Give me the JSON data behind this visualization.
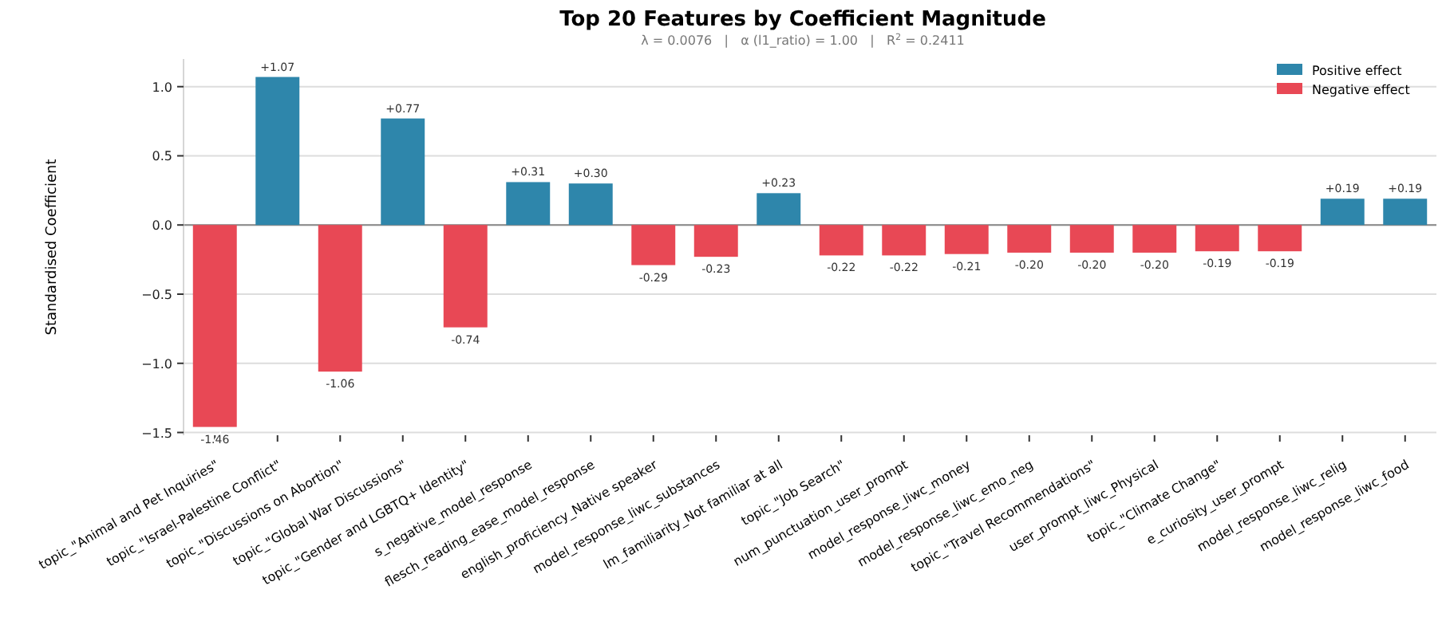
{
  "chart_data": {
    "type": "bar",
    "title": "Top 20 Features by Coefficient Magnitude",
    "subtitle": "λ = 0.0076   |   α (l1_ratio) = 1.00   |   R$^{2}$ = 0.2411",
    "ylabel": "Standardised Coefficient",
    "categories": [
      "topic_\"Animal and Pet Inquiries\"",
      "topic_\"Israel-Palestine Conflict\"",
      "topic_\"Discussions on Abortion\"",
      "topic_\"Global War Discussions\"",
      "topic_\"Gender and LGBTQ+ Identity\"",
      "s_negative_model_response",
      "flesch_reading_ease_model_response",
      "english_proficiency_Native speaker",
      "model_response_liwc_substances",
      "lm_familiarity_Not familiar at all",
      "topic_\"Job Search\"",
      "num_punctuation_user_prompt",
      "model_response_liwc_money",
      "model_response_liwc_emo_neg",
      "topic_\"Travel Recommendations\"",
      "user_prompt_liwc_Physical",
      "topic_\"Climate Change\"",
      "e_curiosity_user_prompt",
      "model_response_liwc_relig",
      "model_response_liwc_food"
    ],
    "stacked": true,
    "series": [
      {
        "name": "Positive effect",
        "color": "#2e86ab",
        "values": [
          null,
          1.07,
          null,
          0.77,
          null,
          0.31,
          0.3,
          null,
          null,
          0.23,
          null,
          null,
          null,
          null,
          null,
          null,
          null,
          null,
          0.19,
          0.19
        ],
        "value_labels": [
          null,
          "+1.07",
          null,
          "+0.77",
          null,
          "+0.31",
          "+0.30",
          null,
          null,
          "+0.23",
          null,
          null,
          null,
          null,
          null,
          null,
          null,
          null,
          "+0.19",
          "+0.19"
        ]
      },
      {
        "name": "Negative effect",
        "color": "#e84855",
        "values": [
          -1.46,
          null,
          -1.06,
          null,
          -0.74,
          null,
          null,
          -0.29,
          -0.23,
          null,
          -0.22,
          -0.22,
          -0.21,
          -0.2,
          -0.2,
          -0.2,
          -0.19,
          -0.19,
          null,
          null
        ],
        "value_labels": [
          "-1.46",
          null,
          "-1.06",
          null,
          "-0.74",
          null,
          null,
          "-0.29",
          "-0.23",
          null,
          "-0.22",
          "-0.22",
          "-0.21",
          "-0.20",
          "-0.20",
          "-0.20",
          "-0.19",
          "-0.19",
          null,
          null
        ]
      }
    ],
    "ylim": [
      -1.52,
      1.2
    ],
    "yticks": [
      {
        "value": -1.5,
        "label": "−1.5"
      },
      {
        "value": -1.0,
        "label": "−1.0"
      },
      {
        "value": -0.5,
        "label": "−0.5"
      },
      {
        "value": 0,
        "label": "0.0"
      },
      {
        "value": 0.5,
        "label": "0.5"
      },
      {
        "value": 1.0,
        "label": "1.0"
      }
    ],
    "grid": "y",
    "legend": "top right",
    "ref_lines": [
      {
        "axis": "y",
        "value": 0,
        "color": "#888888"
      }
    ]
  }
}
